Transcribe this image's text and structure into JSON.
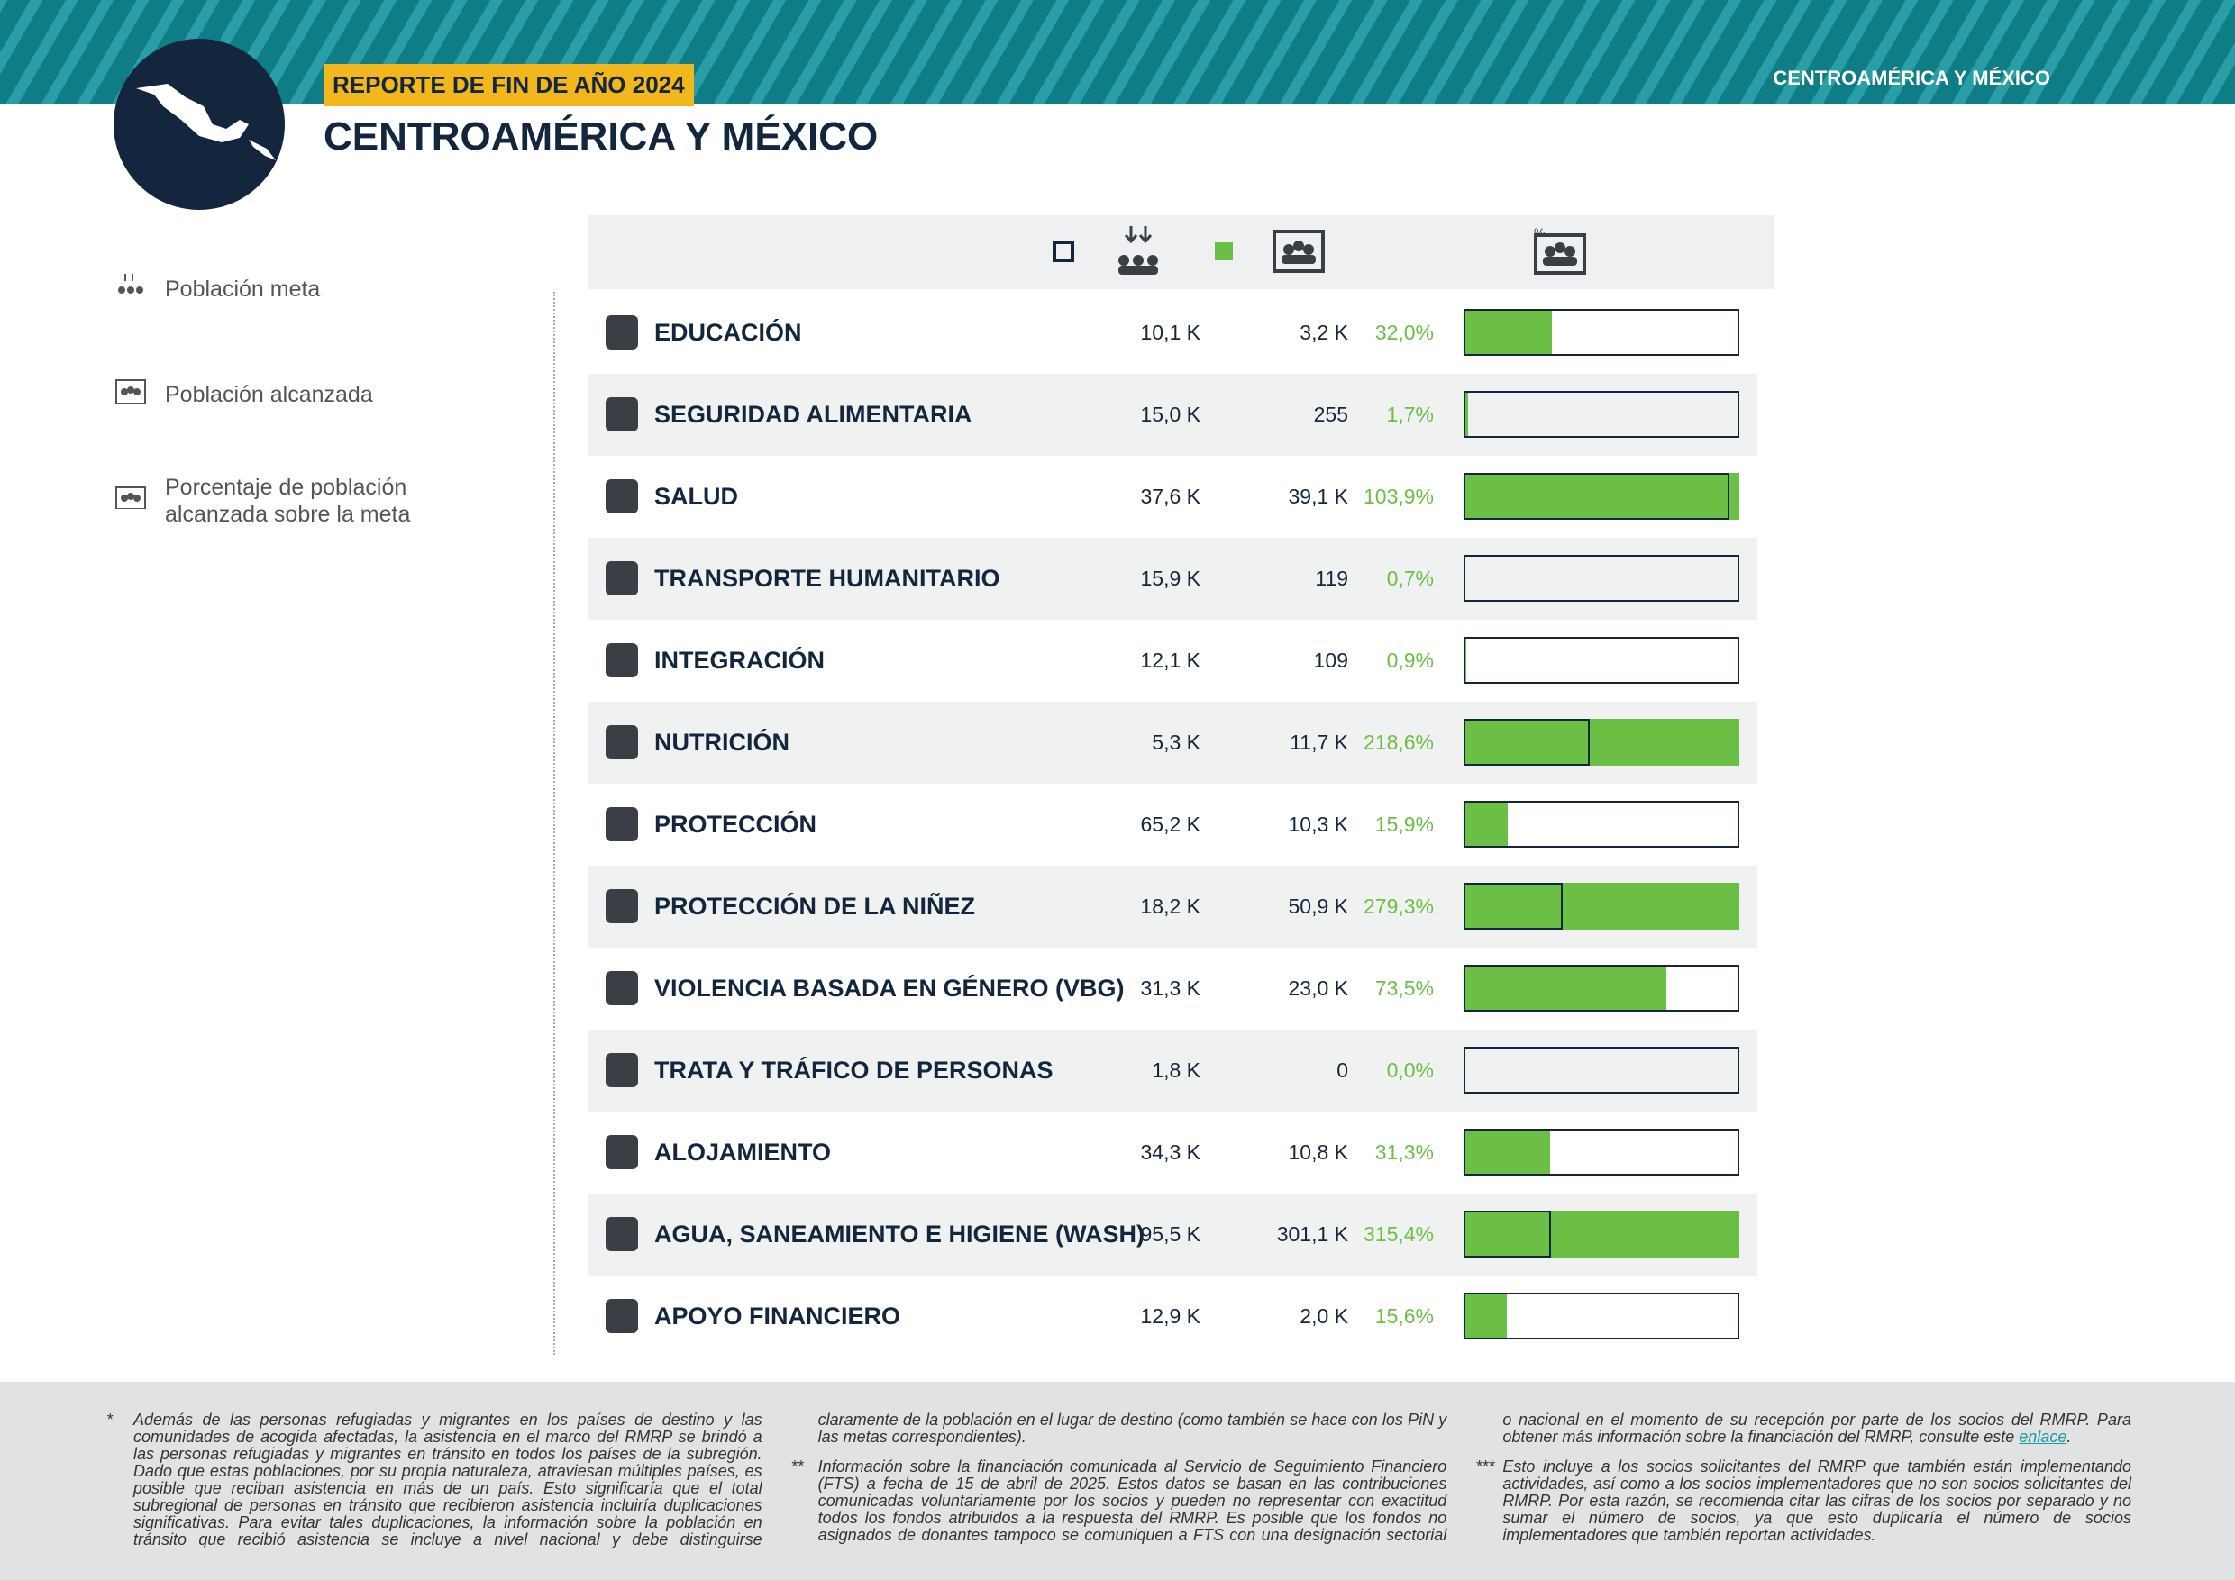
{
  "header": {
    "tag": "REPORTE DE FIN DE AÑO 2024",
    "title": "CENTROAMÉRICA Y MÉXICO",
    "region": "CENTROAMÉRICA Y MÉXICO"
  },
  "legend": [
    "Población meta",
    "Población alcanzada",
    "Porcentaje de población alcanzada sobre la meta"
  ],
  "table": {
    "rows": [
      {
        "sector": "EDUCACIÓN",
        "target": "10,1 K",
        "reached": "3,2 K",
        "percent": 32.0,
        "percent_label": "32,0%"
      },
      {
        "sector": "SEGURIDAD ALIMENTARIA",
        "target": "15,0 K",
        "reached": "255",
        "percent": 1.7,
        "percent_label": "1,7%"
      },
      {
        "sector": "SALUD",
        "target": "37,6 K",
        "reached": "39,1 K",
        "percent": 103.9,
        "percent_label": "103,9%"
      },
      {
        "sector": "TRANSPORTE HUMANITARIO",
        "target": "15,9 K",
        "reached": "119",
        "percent": 0.7,
        "percent_label": "0,7%"
      },
      {
        "sector": "INTEGRACIÓN",
        "target": "12,1 K",
        "reached": "109",
        "percent": 0.9,
        "percent_label": "0,9%"
      },
      {
        "sector": "NUTRICIÓN",
        "target": "5,3 K",
        "reached": "11,7 K",
        "percent": 218.6,
        "percent_label": "218,6%"
      },
      {
        "sector": "PROTECCIÓN",
        "target": "65,2 K",
        "reached": "10,3 K",
        "percent": 15.9,
        "percent_label": "15,9%"
      },
      {
        "sector": "PROTECCIÓN DE LA NIÑEZ",
        "target": "18,2 K",
        "reached": "50,9 K",
        "percent": 279.3,
        "percent_label": "279,3%"
      },
      {
        "sector": "VIOLENCIA BASADA EN GÉNERO (VBG)",
        "target": "31,3 K",
        "reached": "23,0 K",
        "percent": 73.5,
        "percent_label": "73,5%"
      },
      {
        "sector": "TRATA Y TRÁFICO DE PERSONAS",
        "target": "1,8 K",
        "reached": "0",
        "percent": 0.0,
        "percent_label": "0,0%"
      },
      {
        "sector": "ALOJAMIENTO",
        "target": "34,3 K",
        "reached": "10,8 K",
        "percent": 31.3,
        "percent_label": "31,3%"
      },
      {
        "sector": "AGUA, SANEAMIENTO E HIGIENE (WASH)",
        "target": "95,5 K",
        "reached": "301,1 K",
        "percent": 315.4,
        "percent_label": "315,4%"
      },
      {
        "sector": "APOYO FINANCIERO",
        "target": "12,9 K",
        "reached": "2,0 K",
        "percent": 15.6,
        "percent_label": "15,6%"
      }
    ]
  },
  "footnotes": [
    {
      "marker": "*",
      "text": "Además de las personas refugiadas y migrantes en los países de destino y las comunidades de acogida afectadas, la asistencia en el marco del RMRP se brindó a las personas refugiadas y migrantes en tránsito en todos los países de la subregión. Dado que estas poblaciones, por su propia naturaleza, atraviesan múltiples países, es posible que reciban asistencia en más de un país. Esto significaría que el total subregional de personas en tránsito que recibieron asistencia incluiría duplicaciones significativas. Para evitar tales duplicaciones, la información sobre la población en tránsito que recibió asistencia se incluye a nivel nacional y debe distinguirse claramente de la población en el lugar de destino (como también se hace con los PiN y las metas correspondientes)."
    },
    {
      "marker": "**",
      "text": "Información sobre la financiación comunicada al Servicio de Seguimiento Financiero (FTS) a fecha de 15 de abril de 2025. Estos datos se basan en las contribuciones comunicadas voluntariamente por los socios y pueden no representar con exactitud todos los fondos atribuidos a la respuesta del RMRP. Es posible que los fondos no asignados de donantes tampoco se comuniquen a FTS con una designación sectorial o nacional en el momento de su recepción por parte de los socios del RMRP. Para obtener más información sobre la financiación del RMRP, consulte este",
      "link": "enlace",
      "end": "."
    },
    {
      "marker": "***",
      "text": "Esto incluye a los socios solicitantes del RMRP que también están implementando actividades, así como a los socios implementadores que no son socios solicitantes del RMRP. Por esta razón, se recomienda citar las cifras de los socios por separado y no sumar el número de socios, ya que esto duplicaría el número de socios implementadores que también reportan actividades."
    }
  ]
}
